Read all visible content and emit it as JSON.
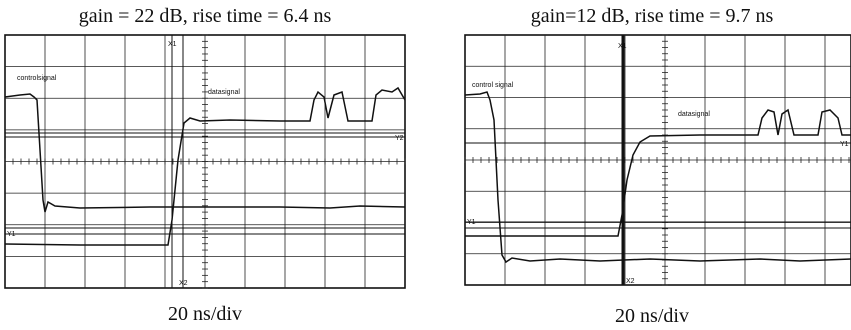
{
  "panels": [
    {
      "title": "gain = 22 dB, rise time = 6.4 ns",
      "x_label": "20 ns/div",
      "trace_labels": [
        "controlsignal",
        "datasignal"
      ],
      "cursor_labels": [
        "X1",
        "X2",
        "Y1",
        "Y2"
      ]
    },
    {
      "title": "gain=12 dB, rise time = 9.7 ns",
      "x_label": "20 ns/div",
      "trace_labels": [
        "control signal",
        "datasignal"
      ],
      "cursor_labels": [
        "X1",
        "X2",
        "Y1",
        "Y1"
      ]
    }
  ]
}
